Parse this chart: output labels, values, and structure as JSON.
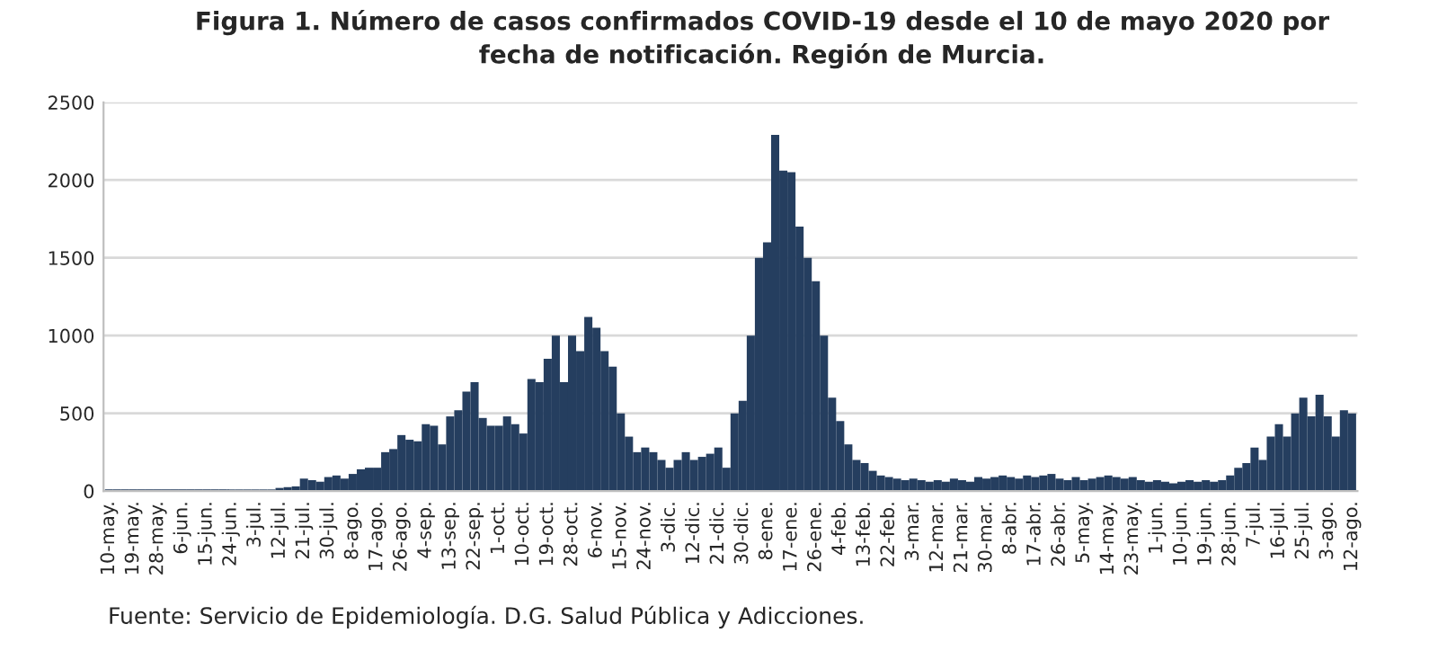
{
  "chart_data": {
    "type": "bar",
    "title": "Figura 1. Número de casos confirmados COVID-19 desde el 10 de mayo 2020 por\nfecha de notificación. Región de Murcia.",
    "annotations": [
      "Fuente: Servicio de Epidemiología. D.G. Salud Pública y Adicciones."
    ],
    "x": [
      "2020-05-10",
      "2020-05-13",
      "2020-05-16",
      "2020-05-19",
      "2020-05-22",
      "2020-05-25",
      "2020-05-28",
      "2020-05-31",
      "2020-06-03",
      "2020-06-06",
      "2020-06-09",
      "2020-06-12",
      "2020-06-15",
      "2020-06-18",
      "2020-06-21",
      "2020-06-24",
      "2020-06-27",
      "2020-06-30",
      "2020-07-03",
      "2020-07-06",
      "2020-07-09",
      "2020-07-12",
      "2020-07-15",
      "2020-07-18",
      "2020-07-21",
      "2020-07-24",
      "2020-07-27",
      "2020-07-30",
      "2020-08-02",
      "2020-08-05",
      "2020-08-08",
      "2020-08-11",
      "2020-08-14",
      "2020-08-17",
      "2020-08-20",
      "2020-08-23",
      "2020-08-26",
      "2020-08-29",
      "2020-09-01",
      "2020-09-04",
      "2020-09-07",
      "2020-09-10",
      "2020-09-13",
      "2020-09-16",
      "2020-09-19",
      "2020-09-22",
      "2020-09-25",
      "2020-09-28",
      "2020-10-01",
      "2020-10-04",
      "2020-10-07",
      "2020-10-10",
      "2020-10-13",
      "2020-10-16",
      "2020-10-19",
      "2020-10-22",
      "2020-10-25",
      "2020-10-28",
      "2020-10-31",
      "2020-11-03",
      "2020-11-06",
      "2020-11-09",
      "2020-11-12",
      "2020-11-15",
      "2020-11-18",
      "2020-11-21",
      "2020-11-24",
      "2020-11-27",
      "2020-11-30",
      "2020-12-03",
      "2020-12-06",
      "2020-12-09",
      "2020-12-12",
      "2020-12-15",
      "2020-12-18",
      "2020-12-21",
      "2020-12-24",
      "2020-12-27",
      "2020-12-30",
      "2021-01-02",
      "2021-01-05",
      "2021-01-08",
      "2021-01-11",
      "2021-01-14",
      "2021-01-17",
      "2021-01-20",
      "2021-01-23",
      "2021-01-26",
      "2021-01-29",
      "2021-02-01",
      "2021-02-04",
      "2021-02-07",
      "2021-02-10",
      "2021-02-13",
      "2021-02-16",
      "2021-02-19",
      "2021-02-22",
      "2021-02-25",
      "2021-02-28",
      "2021-03-03",
      "2021-03-06",
      "2021-03-09",
      "2021-03-12",
      "2021-03-15",
      "2021-03-18",
      "2021-03-21",
      "2021-03-24",
      "2021-03-27",
      "2021-03-30",
      "2021-04-02",
      "2021-04-05",
      "2021-04-08",
      "2021-04-11",
      "2021-04-14",
      "2021-04-17",
      "2021-04-20",
      "2021-04-23",
      "2021-04-26",
      "2021-04-29",
      "2021-05-02",
      "2021-05-05",
      "2021-05-08",
      "2021-05-11",
      "2021-05-14",
      "2021-05-17",
      "2021-05-20",
      "2021-05-23",
      "2021-05-26",
      "2021-05-29",
      "2021-06-01",
      "2021-06-04",
      "2021-06-07",
      "2021-06-10",
      "2021-06-13",
      "2021-06-16",
      "2021-06-19",
      "2021-06-22",
      "2021-06-25",
      "2021-06-28",
      "2021-07-01",
      "2021-07-04",
      "2021-07-07",
      "2021-07-10",
      "2021-07-13",
      "2021-07-16",
      "2021-07-19",
      "2021-07-22",
      "2021-07-25",
      "2021-07-28",
      "2021-07-31",
      "2021-08-03",
      "2021-08-06",
      "2021-08-09",
      "2021-08-12"
    ],
    "series": [
      {
        "color": "#253e5f",
        "values": [
          10,
          10,
          10,
          10,
          10,
          10,
          10,
          10,
          10,
          10,
          10,
          10,
          10,
          10,
          10,
          10,
          10,
          10,
          10,
          10,
          10,
          20,
          25,
          30,
          80,
          70,
          60,
          90,
          100,
          80,
          110,
          140,
          150,
          150,
          250,
          270,
          360,
          330,
          320,
          430,
          420,
          300,
          480,
          520,
          640,
          700,
          470,
          420,
          420,
          480,
          430,
          370,
          720,
          700,
          850,
          1000,
          700,
          1000,
          900,
          1120,
          1050,
          900,
          800,
          500,
          350,
          250,
          280,
          250,
          200,
          150,
          200,
          250,
          200,
          220,
          240,
          280,
          150,
          500,
          580,
          1000,
          1500,
          1600,
          2290,
          2060,
          2050,
          1700,
          1500,
          1350,
          1000,
          600,
          450,
          300,
          200,
          180,
          130,
          100,
          90,
          80,
          70,
          80,
          70,
          60,
          70,
          60,
          80,
          70,
          60,
          90,
          80,
          90,
          100,
          90,
          80,
          100,
          90,
          100,
          110,
          80,
          70,
          90,
          70,
          80,
          90,
          100,
          90,
          80,
          90,
          70,
          60,
          70,
          60,
          50,
          60,
          70,
          60,
          70,
          60,
          70,
          100,
          150,
          180,
          280,
          200,
          350,
          430,
          350,
          500,
          600,
          480,
          620,
          480,
          350,
          520,
          500
        ]
      }
    ],
    "xlim": [
      "2020-05-08",
      "2021-08-14"
    ],
    "xticks": [
      {
        "value": "2020-05-10",
        "label": "10-may."
      },
      {
        "value": "2020-05-19",
        "label": "19-may."
      },
      {
        "value": "2020-05-28",
        "label": "28-may."
      },
      {
        "value": "2020-06-06",
        "label": "6-jun."
      },
      {
        "value": "2020-06-15",
        "label": "15-jun."
      },
      {
        "value": "2020-06-24",
        "label": "24-jun."
      },
      {
        "value": "2020-07-03",
        "label": "3-jul."
      },
      {
        "value": "2020-07-12",
        "label": "12-jul."
      },
      {
        "value": "2020-07-21",
        "label": "21-jul."
      },
      {
        "value": "2020-07-30",
        "label": "30-jul."
      },
      {
        "value": "2020-08-08",
        "label": "8-ago."
      },
      {
        "value": "2020-08-17",
        "label": "17-ago."
      },
      {
        "value": "2020-08-26",
        "label": "26-ago."
      },
      {
        "value": "2020-09-04",
        "label": "4-sep."
      },
      {
        "value": "2020-09-13",
        "label": "13-sep."
      },
      {
        "value": "2020-09-22",
        "label": "22-sep."
      },
      {
        "value": "2020-10-01",
        "label": "1-oct."
      },
      {
        "value": "2020-10-10",
        "label": "10-oct."
      },
      {
        "value": "2020-10-19",
        "label": "19-oct."
      },
      {
        "value": "2020-10-28",
        "label": "28-oct."
      },
      {
        "value": "2020-11-06",
        "label": "6-nov."
      },
      {
        "value": "2020-11-15",
        "label": "15-nov."
      },
      {
        "value": "2020-11-24",
        "label": "24-nov."
      },
      {
        "value": "2020-12-03",
        "label": "3-dic."
      },
      {
        "value": "2020-12-12",
        "label": "12-dic."
      },
      {
        "value": "2020-12-21",
        "label": "21-dic."
      },
      {
        "value": "2020-12-30",
        "label": "30-dic."
      },
      {
        "value": "2021-01-08",
        "label": "8-ene."
      },
      {
        "value": "2021-01-17",
        "label": "17-ene."
      },
      {
        "value": "2021-01-26",
        "label": "26-ene."
      },
      {
        "value": "2021-02-04",
        "label": "4-feb."
      },
      {
        "value": "2021-02-13",
        "label": "13-feb."
      },
      {
        "value": "2021-02-22",
        "label": "22-feb."
      },
      {
        "value": "2021-03-03",
        "label": "3-mar."
      },
      {
        "value": "2021-03-12",
        "label": "12-mar."
      },
      {
        "value": "2021-03-21",
        "label": "21-mar."
      },
      {
        "value": "2021-03-30",
        "label": "30-mar."
      },
      {
        "value": "2021-04-08",
        "label": "8-abr."
      },
      {
        "value": "2021-04-17",
        "label": "17-abr."
      },
      {
        "value": "2021-04-26",
        "label": "26-abr."
      },
      {
        "value": "2021-05-05",
        "label": "5-may."
      },
      {
        "value": "2021-05-14",
        "label": "14-may."
      },
      {
        "value": "2021-05-23",
        "label": "23-may."
      },
      {
        "value": "2021-06-01",
        "label": "1-jun."
      },
      {
        "value": "2021-06-10",
        "label": "10-jun."
      },
      {
        "value": "2021-06-19",
        "label": "19-jun."
      },
      {
        "value": "2021-06-28",
        "label": "28-jun."
      },
      {
        "value": "2021-07-07",
        "label": "7-jul."
      },
      {
        "value": "2021-07-16",
        "label": "16-jul."
      },
      {
        "value": "2021-07-25",
        "label": "25-jul."
      },
      {
        "value": "2021-08-03",
        "label": "3-ago."
      },
      {
        "value": "2021-08-12",
        "label": "12-ago."
      }
    ],
    "ylim": [
      0,
      2500
    ],
    "yticks": [
      0,
      500,
      1000,
      1500,
      2000,
      2500
    ],
    "grid": "y"
  }
}
